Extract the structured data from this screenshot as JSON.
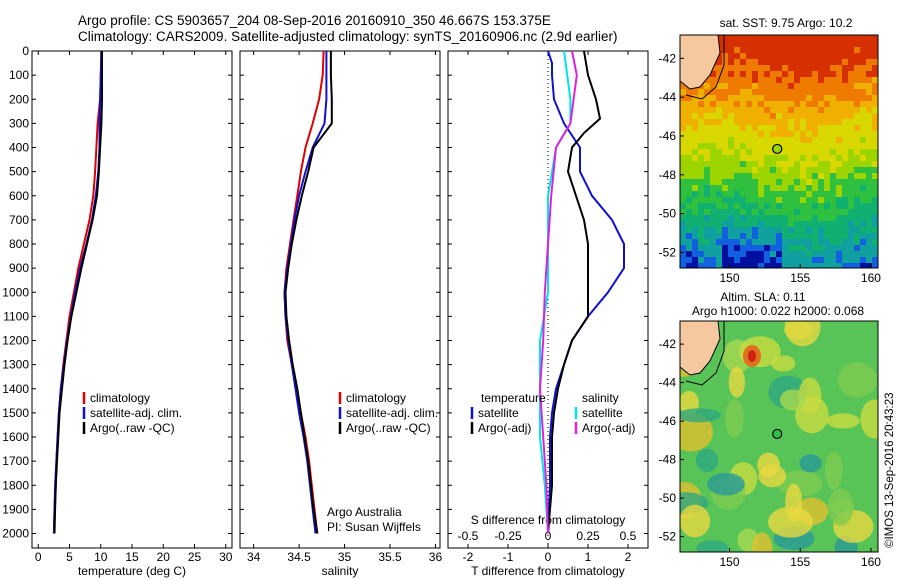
{
  "header": {
    "line1": "Argo profile: CS 5903657_204 08-Sep-2016 20160910_350 46.667S 153.375E",
    "line2": "Climatology: CARS2009. Satellite-adjusted climatology: synTS_20160906.nc (2.9d earlier)"
  },
  "colors": {
    "climatology": "#e00000",
    "satellite": "#1010d0",
    "argo": "#000000",
    "satellite_salinity": "#00e5e5",
    "argo_salinity": "#e020e0"
  },
  "chart_data": [
    {
      "type": "line",
      "id": "temperature",
      "xlabel": "temperature (deg C)",
      "ylabel": "",
      "xlim": [
        -1,
        31
      ],
      "ylim": [
        2060,
        0
      ],
      "xticks": [
        "0",
        "5",
        "10",
        "15",
        "20",
        "25",
        "30"
      ],
      "xtick_values": [
        0,
        5,
        10,
        15,
        20,
        25,
        30
      ],
      "yticks": [
        "0",
        "100",
        "200",
        "300",
        "400",
        "500",
        "600",
        "700",
        "800",
        "900",
        "1000",
        "1100",
        "1200",
        "1300",
        "1400",
        "1500",
        "1600",
        "1700",
        "1800",
        "1900",
        "2000"
      ],
      "ytick_values": [
        0,
        100,
        200,
        300,
        400,
        500,
        600,
        700,
        800,
        900,
        1000,
        1100,
        1200,
        1300,
        1400,
        1500,
        1600,
        1700,
        1800,
        1900,
        2000
      ],
      "legend": [
        "climatology",
        "satellite-adj. clim.",
        "Argo(..raw -QC)"
      ],
      "series": [
        {
          "name": "climatology",
          "color_key": "climatology",
          "points": [
            [
              10.1,
              0
            ],
            [
              10.0,
              100
            ],
            [
              9.9,
              200
            ],
            [
              9.5,
              300
            ],
            [
              9.3,
              400
            ],
            [
              9.1,
              500
            ],
            [
              8.8,
              600
            ],
            [
              8.2,
              700
            ],
            [
              7.3,
              800
            ],
            [
              6.4,
              900
            ],
            [
              5.7,
              1000
            ],
            [
              5.0,
              1100
            ],
            [
              4.5,
              1200
            ],
            [
              4.0,
              1300
            ],
            [
              3.6,
              1400
            ],
            [
              3.3,
              1500
            ],
            [
              3.1,
              1600
            ],
            [
              2.9,
              1700
            ],
            [
              2.8,
              1800
            ],
            [
              2.6,
              1900
            ],
            [
              2.5,
              2000
            ]
          ]
        },
        {
          "name": "satellite-adj. clim.",
          "color_key": "satellite",
          "points": [
            [
              10.1,
              0
            ],
            [
              10.0,
              100
            ],
            [
              9.9,
              200
            ],
            [
              9.8,
              300
            ],
            [
              9.8,
              400
            ],
            [
              9.6,
              500
            ],
            [
              9.2,
              600
            ],
            [
              8.6,
              700
            ],
            [
              7.7,
              800
            ],
            [
              6.7,
              900
            ],
            [
              5.9,
              1000
            ],
            [
              5.2,
              1100
            ],
            [
              4.6,
              1200
            ],
            [
              4.1,
              1300
            ],
            [
              3.6,
              1400
            ],
            [
              3.3,
              1500
            ],
            [
              3.1,
              1600
            ],
            [
              2.9,
              1700
            ],
            [
              2.7,
              1800
            ],
            [
              2.6,
              1900
            ],
            [
              2.5,
              2000
            ]
          ]
        },
        {
          "name": "Argo(..raw -QC)",
          "color_key": "argo",
          "points": [
            [
              10.2,
              0
            ],
            [
              10.2,
              100
            ],
            [
              10.2,
              200
            ],
            [
              10.1,
              300
            ],
            [
              9.9,
              400
            ],
            [
              9.7,
              500
            ],
            [
              9.4,
              600
            ],
            [
              8.7,
              700
            ],
            [
              7.8,
              800
            ],
            [
              6.9,
              900
            ],
            [
              6.1,
              1000
            ],
            [
              5.3,
              1100
            ],
            [
              4.7,
              1200
            ],
            [
              4.2,
              1300
            ],
            [
              3.8,
              1400
            ],
            [
              3.4,
              1500
            ],
            [
              3.2,
              1600
            ],
            [
              3.0,
              1700
            ],
            [
              2.8,
              1800
            ],
            [
              2.7,
              1900
            ],
            [
              2.6,
              2000
            ]
          ]
        }
      ]
    },
    {
      "type": "line",
      "id": "salinity",
      "xlabel": "salinity",
      "ylabel": "",
      "xlim": [
        33.85,
        36.05
      ],
      "ylim": [
        2060,
        0
      ],
      "xticks": [
        "34",
        "34.5",
        "35",
        "35.5",
        "36"
      ],
      "xtick_values": [
        34,
        34.5,
        35,
        35.5,
        36
      ],
      "legend": [
        "climatology",
        "satellite-adj. clim.",
        "Argo(..raw -QC)"
      ],
      "annotations": [
        "Argo Australia",
        "PI: Susan Wijffels"
      ],
      "series": [
        {
          "name": "climatology",
          "color_key": "climatology",
          "points": [
            [
              34.77,
              0
            ],
            [
              34.76,
              100
            ],
            [
              34.72,
              200
            ],
            [
              34.65,
              300
            ],
            [
              34.57,
              400
            ],
            [
              34.52,
              500
            ],
            [
              34.48,
              600
            ],
            [
              34.44,
              700
            ],
            [
              34.4,
              800
            ],
            [
              34.36,
              900
            ],
            [
              34.34,
              1000
            ],
            [
              34.35,
              1100
            ],
            [
              34.37,
              1200
            ],
            [
              34.42,
              1300
            ],
            [
              34.47,
              1400
            ],
            [
              34.52,
              1500
            ],
            [
              34.57,
              1600
            ],
            [
              34.61,
              1700
            ],
            [
              34.64,
              1800
            ],
            [
              34.67,
              1900
            ],
            [
              34.7,
              2000
            ]
          ]
        },
        {
          "name": "satellite-adj. clim.",
          "color_key": "satellite",
          "points": [
            [
              34.8,
              0
            ],
            [
              34.8,
              100
            ],
            [
              34.8,
              200
            ],
            [
              34.78,
              300
            ],
            [
              34.65,
              400
            ],
            [
              34.57,
              500
            ],
            [
              34.5,
              600
            ],
            [
              34.45,
              700
            ],
            [
              34.41,
              800
            ],
            [
              34.37,
              900
            ],
            [
              34.34,
              1000
            ],
            [
              34.35,
              1100
            ],
            [
              34.38,
              1200
            ],
            [
              34.42,
              1300
            ],
            [
              34.46,
              1400
            ],
            [
              34.5,
              1500
            ],
            [
              34.55,
              1600
            ],
            [
              34.59,
              1700
            ],
            [
              34.62,
              1800
            ],
            [
              34.65,
              1900
            ],
            [
              34.68,
              2000
            ]
          ]
        },
        {
          "name": "Argo(..raw -QC)",
          "color_key": "argo",
          "points": [
            [
              34.85,
              0
            ],
            [
              34.85,
              100
            ],
            [
              34.86,
              200
            ],
            [
              34.86,
              300
            ],
            [
              34.66,
              400
            ],
            [
              34.6,
              500
            ],
            [
              34.53,
              600
            ],
            [
              34.47,
              700
            ],
            [
              34.42,
              800
            ],
            [
              34.38,
              900
            ],
            [
              34.35,
              1000
            ],
            [
              34.36,
              1100
            ],
            [
              34.39,
              1200
            ],
            [
              34.43,
              1300
            ],
            [
              34.48,
              1400
            ],
            [
              34.52,
              1500
            ],
            [
              34.56,
              1600
            ],
            [
              34.6,
              1700
            ],
            [
              34.63,
              1800
            ],
            [
              34.66,
              1900
            ],
            [
              34.7,
              2000
            ]
          ]
        }
      ]
    },
    {
      "type": "line",
      "id": "difference",
      "xlabel": "T difference from climatology",
      "xlabel_top": "S difference from climatology",
      "xlim": [
        -2.5,
        2.5
      ],
      "ylim": [
        2060,
        0
      ],
      "xticks": [
        "-2",
        "-1",
        "0",
        "1",
        "2"
      ],
      "xtick_values": [
        -2,
        -1,
        0,
        1,
        2
      ],
      "xticks_salinity": [
        "-0.5",
        "-0.25",
        "0",
        "0.25",
        "0.5"
      ],
      "xtick_values_salinity": [
        -0.5,
        -0.25,
        0,
        0.25,
        0.5
      ],
      "legend_titles": [
        "temperature",
        "salinity"
      ],
      "legend_temperature": [
        "satellite",
        "Argo(-adj)"
      ],
      "legend_salinity": [
        "satellite",
        "Argo(-adj)"
      ],
      "series": [
        {
          "name": "satellite",
          "group": "temperature",
          "color_key": "satellite",
          "points": [
            [
              0.0,
              0
            ],
            [
              0.1,
              50
            ],
            [
              0.1,
              100
            ],
            [
              0.15,
              200
            ],
            [
              0.4,
              300
            ],
            [
              0.8,
              400
            ],
            [
              0.8,
              500
            ],
            [
              1.1,
              600
            ],
            [
              1.6,
              700
            ],
            [
              1.9,
              800
            ],
            [
              1.9,
              900
            ],
            [
              1.5,
              1000
            ],
            [
              1.0,
              1100
            ],
            [
              0.6,
              1200
            ],
            [
              0.4,
              1300
            ],
            [
              0.2,
              1400
            ],
            [
              0.1,
              1500
            ],
            [
              0.05,
              1600
            ],
            [
              0.05,
              1800
            ],
            [
              0.0,
              2000
            ]
          ]
        },
        {
          "name": "Argo(-adj)",
          "group": "temperature",
          "color_key": "argo",
          "points": [
            [
              0.9,
              0
            ],
            [
              1.0,
              100
            ],
            [
              1.2,
              200
            ],
            [
              1.3,
              280
            ],
            [
              0.9,
              340
            ],
            [
              0.6,
              400
            ],
            [
              0.5,
              500
            ],
            [
              0.7,
              600
            ],
            [
              0.9,
              700
            ],
            [
              1.0,
              800
            ],
            [
              1.0,
              900
            ],
            [
              1.0,
              1000
            ],
            [
              1.0,
              1100
            ],
            [
              0.6,
              1200
            ],
            [
              0.4,
              1300
            ],
            [
              0.25,
              1400
            ],
            [
              0.15,
              1500
            ],
            [
              0.1,
              1600
            ],
            [
              0.1,
              1800
            ],
            [
              0.0,
              2000
            ]
          ]
        },
        {
          "name": "satellite",
          "group": "salinity",
          "color_key": "satellite_salinity",
          "points": [
            [
              0.1,
              0
            ],
            [
              0.12,
              100
            ],
            [
              0.14,
              200
            ],
            [
              0.14,
              300
            ],
            [
              0.05,
              400
            ],
            [
              0.0,
              600
            ],
            [
              0.0,
              800
            ],
            [
              0.0,
              1000
            ],
            [
              -0.05,
              1200
            ],
            [
              -0.05,
              1400
            ],
            [
              -0.05,
              1600
            ],
            [
              -0.02,
              1800
            ],
            [
              0.0,
              2000
            ]
          ]
        },
        {
          "name": "Argo(-adj)",
          "group": "salinity",
          "color_key": "argo_salinity",
          "points": [
            [
              0.15,
              0
            ],
            [
              0.18,
              100
            ],
            [
              0.16,
              200
            ],
            [
              0.14,
              300
            ],
            [
              0.05,
              400
            ],
            [
              0.02,
              600
            ],
            [
              0.0,
              800
            ],
            [
              -0.02,
              1000
            ],
            [
              -0.03,
              1200
            ],
            [
              -0.05,
              1400
            ],
            [
              -0.03,
              1600
            ],
            [
              -0.01,
              1800
            ],
            [
              0.0,
              2000
            ]
          ]
        }
      ]
    },
    {
      "type": "heatmap",
      "id": "sst_map",
      "title": "sat. SST: 9.75 Argo: 10.2",
      "xlim": [
        146.5,
        160.5
      ],
      "ylim": [
        -52.8,
        -40.8
      ],
      "xticks": [
        "150",
        "155",
        "160"
      ],
      "xtick_values": [
        150,
        155,
        160
      ],
      "yticks": [
        "-42",
        "-44",
        "-46",
        "-48",
        "-50",
        "-52"
      ],
      "ytick_values": [
        -42,
        -44,
        -46,
        -48,
        -50,
        -52
      ],
      "argo_position": [
        153.375,
        -46.667
      ]
    },
    {
      "type": "heatmap",
      "id": "sla_map",
      "title_line1": "Altim. SLA: 0.11",
      "title_line2": "Argo h1000: 0.022 h2000: 0.068",
      "xlim": [
        146.5,
        160.5
      ],
      "ylim": [
        -52.8,
        -40.8
      ],
      "xticks": [
        "150",
        "155",
        "160"
      ],
      "xtick_values": [
        150,
        155,
        160
      ],
      "yticks": [
        "-42",
        "-44",
        "-46",
        "-48",
        "-50",
        "-52"
      ],
      "ytick_values": [
        -42,
        -44,
        -46,
        -48,
        -50,
        -52
      ],
      "argo_position": [
        153.375,
        -46.667
      ]
    }
  ],
  "credit": "©IMOS 13-Sep-2016 20:43:23"
}
